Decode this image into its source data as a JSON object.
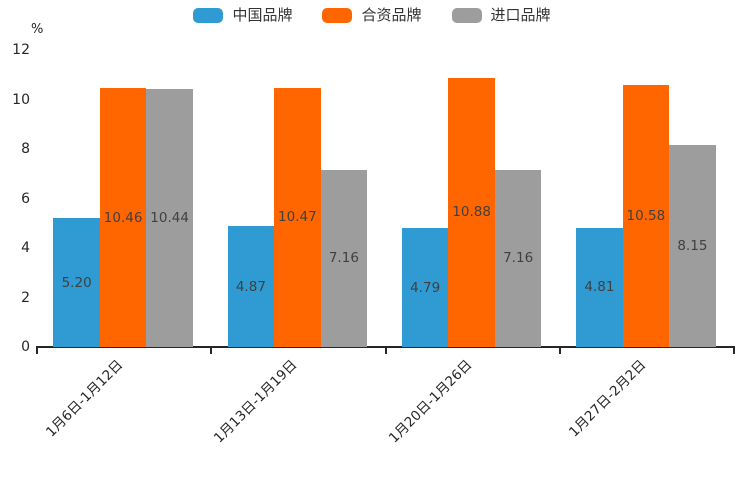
{
  "chart": {
    "percent_label": "%",
    "axis_color": "#262626",
    "value_label_color": "#404040"
  },
  "chart_data": {
    "type": "bar",
    "title": "",
    "xlabel": "",
    "ylabel": "%",
    "ylim": [
      0,
      12
    ],
    "y_tick_step": 2,
    "y_ticks": [
      0,
      2,
      4,
      6,
      8,
      10,
      12
    ],
    "grid": false,
    "legend_position": "top",
    "categories": [
      "1月6日-1月12日",
      "1月13日-1月19日",
      "1月20日-1月26日",
      "1月27日-2月2日"
    ],
    "series": [
      {
        "name": "中国品牌",
        "color": "#2f9bd2",
        "values": [
          5.2,
          4.87,
          4.79,
          4.81
        ]
      },
      {
        "name": "合资品牌",
        "color": "#ff6600",
        "values": [
          10.46,
          10.47,
          10.88,
          10.58
        ]
      },
      {
        "name": "进口品牌",
        "color": "#9d9d9d",
        "values": [
          10.44,
          7.16,
          7.16,
          8.15
        ]
      }
    ]
  }
}
